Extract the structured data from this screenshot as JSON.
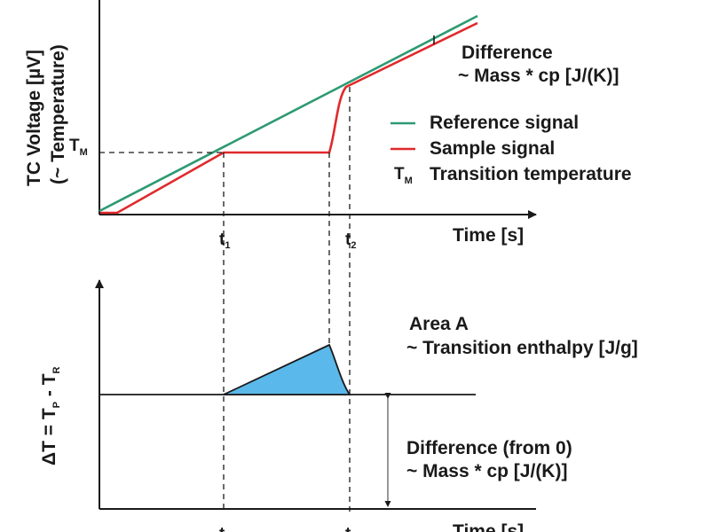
{
  "colors": {
    "reference": "#2e9a72",
    "sample": "#e0292b",
    "area_fill": "#5ab8ea",
    "ink": "#1a1a1a"
  },
  "top_plot": {
    "ylabel_line1": "TC Voltage [µV]",
    "ylabel_line2": "(~ Temperature)",
    "xlabel": "Time [s]",
    "tm_symbol": "T",
    "tm_subscript": "M",
    "t1_symbol": "t",
    "t1_subscript": "1",
    "t2_symbol": "t",
    "t2_subscript": "2",
    "difference_line1": "Difference",
    "difference_line2": "~ Mass * cp [J/(K)]",
    "legend": {
      "reference_label": "Reference signal",
      "sample_label": "Sample signal",
      "tm_symbol": "T",
      "tm_subscript": "M",
      "tm_label": "Transition temperature"
    }
  },
  "bottom_plot": {
    "ylabel_main": "ΔT = T",
    "ylabel_sub_p": "P",
    "ylabel_mid": " - T",
    "ylabel_sub_r": "R",
    "xlabel": "Time [s]",
    "t1_symbol": "t",
    "t2_symbol": "t",
    "area_line1": "Area A",
    "area_line2": "~ Transition enthalpy [J/g]",
    "diff_line1": "Difference (from 0)",
    "diff_line2": "~ Mass * cp [J/(K)]"
  }
}
